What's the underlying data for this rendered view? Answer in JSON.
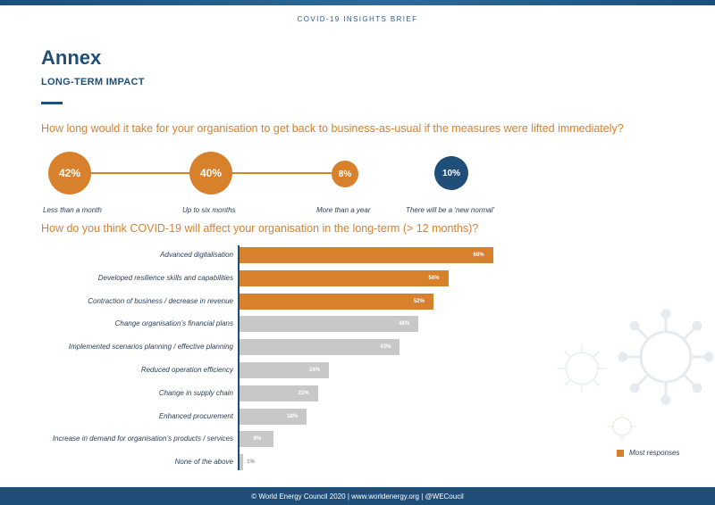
{
  "header": {
    "brief": "COVID-19 INSIGHTS BRIEF"
  },
  "page": {
    "title": "Annex",
    "subtitle": "LONG-TERM IMPACT"
  },
  "questions": {
    "q1": "How long would it take for your organisation to get back to business-as-usual if the measures were lifted immediately?",
    "q2": "How do you think COVID-19 will affect your organisation in the long-term (> 12 months)?"
  },
  "timeline": [
    {
      "value": "42%",
      "label": "Less than a month",
      "color": "#d8812c"
    },
    {
      "value": "40%",
      "label": "Up to six months",
      "color": "#d8812c"
    },
    {
      "value": "8%",
      "label": "More than a year",
      "color": "#d8812c"
    },
    {
      "value": "10%",
      "label": "There will be a ‘new normal’",
      "color": "#1f4e79"
    }
  ],
  "chart_data": {
    "type": "bar",
    "orientation": "horizontal",
    "categories": [
      "Advanced digitalisation",
      "Developed resilience skills and capabilities",
      "Contraction of business / decrease in revenue",
      "Change organisation’s financial plans",
      "Implemented scenarios planning / effective planning",
      "Reduced operation efficiency",
      "Change in supply chain",
      "Enhanced procurement",
      "Increase in demand for organisation’s products / services",
      "None of the above"
    ],
    "values": [
      68,
      56,
      52,
      48,
      43,
      24,
      21,
      18,
      9,
      1
    ],
    "value_labels": [
      "68%",
      "56%",
      "52%",
      "48%",
      "43%",
      "24%",
      "21%",
      "18%",
      "9%",
      "1%"
    ],
    "highlight_count": 3,
    "colors": {
      "highlight": "#d8812c",
      "default": "#c8c8c8"
    },
    "xlim": [
      0,
      100
    ],
    "legend": {
      "label": "Most responses",
      "placement": "bottom-right"
    }
  },
  "footer": {
    "text": "© World Energy Council 2020 | www.worldenergy.org | @WECoucil"
  }
}
